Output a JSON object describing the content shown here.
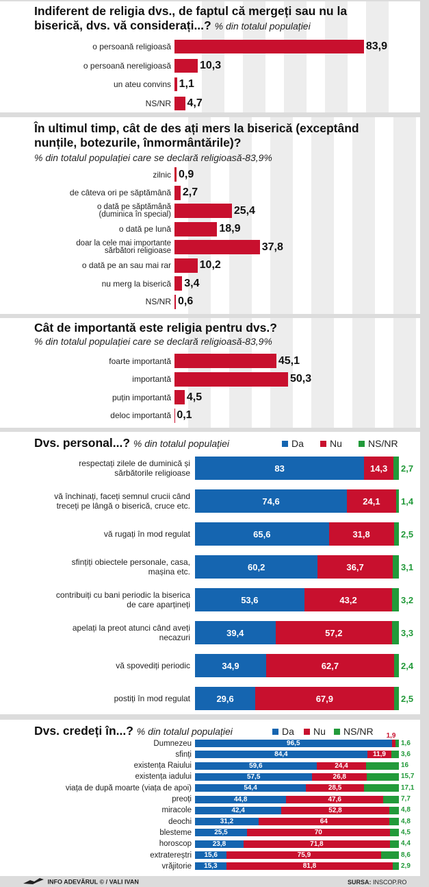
{
  "colors": {
    "da": "#1565b0",
    "nu": "#c8102e",
    "ns": "#229a3a",
    "bar": "#c8102e"
  },
  "chart_data": [
    {
      "type": "bar",
      "title": "Indiferent de religia dvs., de faptul că mergeți sau nu la biserică, dvs. vă considerați...?",
      "subtitle": "% din totalul populației",
      "categories": [
        "o persoană religioasă",
        "o persoană nereligioasă",
        "un ateu convins",
        "NS/NR"
      ],
      "value_labels": [
        "83,9",
        "10,3",
        "1,1",
        "4,7"
      ],
      "values": [
        83.9,
        10.3,
        1.1,
        4.7
      ]
    },
    {
      "type": "bar",
      "title": "În ultimul timp, cât de des ați mers la biserică (exceptând nunțile, botezurile, înmormântările)?",
      "subtitle": "% din totalul populației care se declară religioasă-83,9%",
      "categories": [
        [
          "zilnic"
        ],
        [
          "de câteva ori pe săptămână"
        ],
        [
          "o dată pe săptămână",
          "(duminica în special)"
        ],
        [
          "o dată pe lună"
        ],
        [
          "doar la cele mai importante",
          "sărbători religioase"
        ],
        [
          "o dată pe an sau mai rar"
        ],
        [
          "nu merg la biserică"
        ],
        [
          "NS/NR"
        ]
      ],
      "value_labels": [
        "0,9",
        "2,7",
        "25,4",
        "18,9",
        "37,8",
        "10,2",
        "3,4",
        "0,6"
      ],
      "values": [
        0.9,
        2.7,
        25.4,
        18.9,
        37.8,
        10.2,
        3.4,
        0.6
      ]
    },
    {
      "type": "bar",
      "title": "Cât de importantă este religia pentru dvs.?",
      "subtitle": "% din totalul populației care se declară religioasă-83,9%",
      "categories": [
        "foarte importantă",
        "importantă",
        "puțin importantă",
        "deloc importantă"
      ],
      "value_labels": [
        "45,1",
        "50,3",
        "4,5",
        "0,1"
      ],
      "values": [
        45.1,
        50.3,
        4.5,
        0.1
      ]
    },
    {
      "type": "bar",
      "stacked": true,
      "title": "Dvs. personal...?",
      "subtitle": "% din totalul populației",
      "legend": [
        "Da",
        "Nu",
        "NS/NR"
      ],
      "categories": [
        [
          "respectați zilele de duminică și",
          "sărbătorile religioase"
        ],
        [
          "vă închinați, faceți semnul crucii când",
          "treceți pe lângă o biserică, cruce etc."
        ],
        [
          "vă rugați în mod regulat"
        ],
        [
          "sfințiți obiectele personale, casa,",
          "mașina etc."
        ],
        [
          "contribuiți cu bani periodic la biserica",
          "de care aparțineți"
        ],
        [
          "apelați la preot atunci când aveți",
          "necazuri"
        ],
        [
          "vă spovediți periodic"
        ],
        [
          "postiți în mod regulat"
        ]
      ],
      "series": [
        {
          "name": "Da",
          "values": [
            83,
            74.6,
            65.6,
            60.2,
            53.6,
            39.4,
            34.9,
            29.6
          ],
          "labels": [
            "83",
            "74,6",
            "65,6",
            "60,2",
            "53,6",
            "39,4",
            "34,9",
            "29,6"
          ]
        },
        {
          "name": "Nu",
          "values": [
            14.3,
            24.1,
            31.8,
            36.7,
            43.2,
            57.2,
            62.7,
            67.9
          ],
          "labels": [
            "14,3",
            "24,1",
            "31,8",
            "36,7",
            "43,2",
            "57,2",
            "62,7",
            "67,9"
          ]
        },
        {
          "name": "NS/NR",
          "values": [
            2.7,
            1.4,
            2.5,
            3.1,
            3.2,
            3.3,
            2.4,
            2.5
          ],
          "labels": [
            "2,7",
            "1,4",
            "2,5",
            "3,1",
            "3,2",
            "3,3",
            "2,4",
            "2,5"
          ]
        }
      ]
    },
    {
      "type": "bar",
      "stacked": true,
      "title": "Dvs. credeți în...?",
      "subtitle": "% din totalul populației",
      "legend": [
        "Da",
        "Nu",
        "NS/NR"
      ],
      "categories": [
        "Dumnezeu",
        "sfinți",
        "existența Raiului",
        "existența iadului",
        "viața de după moarte (viața de apoi)",
        "preoți",
        "miracole",
        "deochi",
        "blesteme",
        "horoscop",
        "extratereștri",
        "vrăjitorie"
      ],
      "series": [
        {
          "name": "Da",
          "values": [
            96.5,
            84.4,
            59.6,
            57.5,
            54.4,
            44.8,
            42.4,
            31.2,
            25.5,
            23.8,
            15.6,
            15.3
          ],
          "labels": [
            "96,5",
            "84,4",
            "59,6",
            "57,5",
            "54,4",
            "44,8",
            "42,4",
            "31,2",
            "25,5",
            "23,8",
            "15,6",
            "15,3"
          ]
        },
        {
          "name": "Nu",
          "values": [
            1.9,
            11.9,
            24.4,
            26.8,
            28.5,
            47.6,
            52.8,
            64,
            70,
            71.8,
            75.9,
            81.8
          ],
          "labels": [
            "1,9",
            "11,9",
            "24,4",
            "26,8",
            "28,5",
            "47,6",
            "52,8",
            "64",
            "70",
            "71,8",
            "75,9",
            "81,8"
          ]
        },
        {
          "name": "NS/NR",
          "values": [
            1.6,
            3.6,
            16,
            15.7,
            17.1,
            7.7,
            4.8,
            4.8,
            4.5,
            4.4,
            8.6,
            2.9
          ],
          "labels": [
            "1,6",
            "3,6",
            "16",
            "15,7",
            "17,1",
            "7,7",
            "4,8",
            "4,8",
            "4,5",
            "4,4",
            "8,6",
            "2,9"
          ]
        }
      ]
    }
  ],
  "footer": {
    "credit": "INFO ADEVĂRUL © / VALI IVAN",
    "source_label": "SURSA:",
    "source": "INSCOP.RO"
  }
}
